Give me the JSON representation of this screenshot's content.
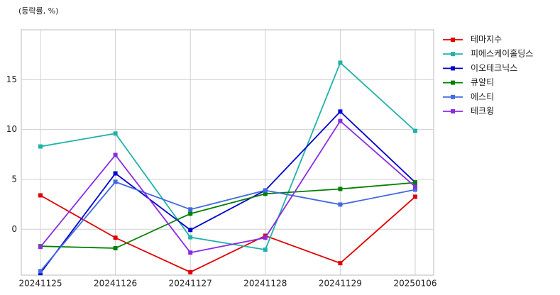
{
  "chart_data": {
    "type": "line",
    "title": "(등락률, %)",
    "categories": [
      "20241125",
      "20241126",
      "20241127",
      "20241128",
      "20241129",
      "20250106"
    ],
    "series": [
      {
        "name": "테마지수",
        "color": "#e00000",
        "values": [
          3.4,
          -0.85,
          -4.3,
          -0.65,
          -3.4,
          3.26
        ]
      },
      {
        "name": "피에스케이홀딩스",
        "color": "#20b2aa",
        "values": [
          8.3,
          9.6,
          -0.8,
          -2.05,
          16.7,
          9.86
        ]
      },
      {
        "name": "이오테크닉스",
        "color": "#0000cd",
        "values": [
          -4.4,
          5.6,
          -0.07,
          3.9,
          11.8,
          4.7
        ]
      },
      {
        "name": "큐알티",
        "color": "#008000",
        "values": [
          -1.7,
          -1.9,
          1.56,
          3.55,
          4.04,
          4.68
        ]
      },
      {
        "name": "에스티",
        "color": "#4169e1",
        "values": [
          -4.2,
          4.75,
          1.99,
          3.9,
          2.48,
          3.97
        ]
      },
      {
        "name": "테크윙",
        "color": "#8a2be2",
        "values": [
          -1.77,
          7.45,
          -2.34,
          -0.85,
          10.85,
          4.26
        ]
      }
    ],
    "ylim": [
      -4.6,
      20
    ],
    "yticks": [
      0,
      5,
      10,
      15
    ],
    "grid": true
  }
}
